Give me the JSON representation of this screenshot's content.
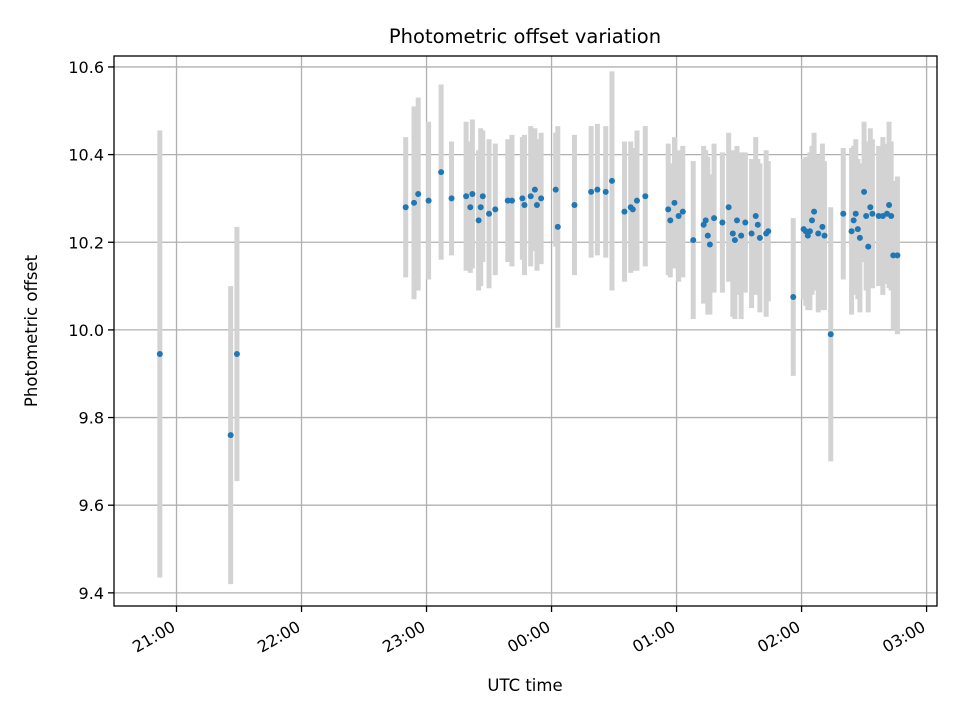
{
  "chart_data": {
    "type": "scatter",
    "title": "Photometric offset variation",
    "xlabel": "UTC time",
    "ylabel": "Photometric offset",
    "grid": true,
    "x_ticks": [
      "21:00",
      "22:00",
      "23:00",
      "00:00",
      "01:00",
      "02:00",
      "03:00"
    ],
    "y_ticks": [
      "9.4",
      "9.6",
      "9.8",
      "10.0",
      "10.2",
      "10.4",
      "10.6"
    ],
    "xlim": [
      "20:30",
      "03:05"
    ],
    "ylim": [
      9.37,
      10.625
    ],
    "colors": {
      "point": "#1f77b4",
      "errorbar": "#d3d3d3",
      "grid": "#b0b0b0"
    },
    "series": [
      {
        "x": [
          "20:52",
          "21:26",
          "21:29",
          "22:50",
          "22:54",
          "22:56",
          "23:01",
          "23:07",
          "23:12",
          "23:19",
          "23:21",
          "23:22",
          "23:25",
          "23:26",
          "23:27",
          "23:30",
          "23:33",
          "23:39",
          "23:41",
          "23:46",
          "23:47",
          "23:50",
          "23:52",
          "23:53",
          "23:55",
          "24:02",
          "24:03",
          "24:11",
          "24:19",
          "24:22",
          "24:26",
          "24:29",
          "24:35",
          "24:38",
          "24:39",
          "24:41",
          "24:45",
          "24:56",
          "24:57",
          "24:59",
          "25:01",
          "25:03",
          "25:08",
          "25:13",
          "25:14",
          "25:15",
          "25:16",
          "25:18",
          "25:22",
          "25:25",
          "25:27",
          "25:28",
          "25:29",
          "25:31",
          "25:33",
          "25:36",
          "25:38",
          "25:39",
          "25:40",
          "25:43",
          "25:44",
          "25:56",
          "26:01",
          "26:02",
          "26:03",
          "26:04",
          "26:05",
          "26:06",
          "26:08",
          "26:10",
          "26:11",
          "26:14",
          "26:20",
          "26:24",
          "26:25",
          "26:26",
          "26:27",
          "26:28",
          "26:30",
          "26:31",
          "26:32",
          "26:33",
          "26:34",
          "26:37",
          "26:39",
          "26:41",
          "26:42",
          "26:43",
          "26:44",
          "26:46"
        ],
        "y": [
          9.945,
          9.76,
          9.945,
          10.28,
          10.29,
          10.31,
          10.295,
          10.36,
          10.3,
          10.305,
          10.28,
          10.31,
          10.25,
          10.28,
          10.305,
          10.265,
          10.275,
          10.295,
          10.295,
          10.3,
          10.285,
          10.305,
          10.32,
          10.285,
          10.3,
          10.32,
          10.235,
          10.285,
          10.315,
          10.32,
          10.315,
          10.34,
          10.27,
          10.28,
          10.275,
          10.295,
          10.305,
          10.275,
          10.25,
          10.29,
          10.26,
          10.27,
          10.205,
          10.24,
          10.25,
          10.215,
          10.195,
          10.255,
          10.245,
          10.28,
          10.22,
          10.205,
          10.25,
          10.215,
          10.245,
          10.22,
          10.26,
          10.24,
          10.21,
          10.22,
          10.225,
          10.075,
          10.23,
          10.225,
          10.215,
          10.225,
          10.25,
          10.27,
          10.22,
          10.235,
          10.215,
          9.99,
          10.265,
          10.225,
          10.25,
          10.265,
          10.23,
          10.21,
          10.315,
          10.26,
          10.19,
          10.28,
          10.265,
          10.26,
          10.26,
          10.265,
          10.285,
          10.26,
          10.17,
          10.17
        ],
        "err": [
          0.51,
          0.34,
          0.29,
          0.16,
          0.22,
          0.22,
          0.18,
          0.2,
          0.13,
          0.17,
          0.15,
          0.17,
          0.16,
          0.18,
          0.15,
          0.17,
          0.15,
          0.14,
          0.15,
          0.14,
          0.16,
          0.16,
          0.14,
          0.15,
          0.15,
          0.13,
          0.23,
          0.16,
          0.15,
          0.15,
          0.15,
          0.25,
          0.16,
          0.15,
          0.14,
          0.16,
          0.16,
          0.15,
          0.13,
          0.15,
          0.15,
          0.15,
          0.18,
          0.18,
          0.16,
          0.18,
          0.16,
          0.17,
          0.16,
          0.17,
          0.19,
          0.18,
          0.17,
          0.19,
          0.16,
          0.17,
          0.18,
          0.15,
          0.17,
          0.19,
          0.16,
          0.18,
          0.16,
          0.17,
          0.17,
          0.18,
          0.17,
          0.18,
          0.18,
          0.19,
          0.17,
          0.29,
          0.15,
          0.19,
          0.17,
          0.17,
          0.16,
          0.17,
          0.16,
          0.17,
          0.15,
          0.18,
          0.17,
          0.16,
          0.18,
          0.16,
          0.19,
          0.17,
          0.17,
          0.18
        ]
      }
    ]
  }
}
